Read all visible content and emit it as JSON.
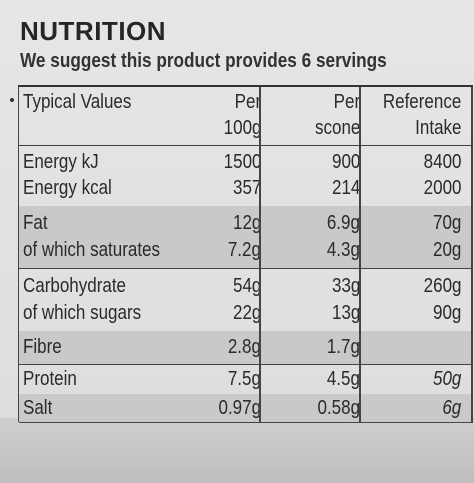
{
  "title": "NUTRITION",
  "subtitle": "We suggest this product provides 6 servings",
  "headers": {
    "nutrient": "Typical Values",
    "per100_line1": "Per",
    "per100_line2": "100g",
    "scone_line1": "Per",
    "scone_line2": "scone",
    "ri_line1": "Reference",
    "ri_line2": "Intake"
  },
  "rows": {
    "energy_kj": {
      "label": "Energy kJ",
      "per100": "1500",
      "scone": "900",
      "ri": "8400"
    },
    "energy_kcal": {
      "label": "Energy kcal",
      "per100": "357",
      "scone": "214",
      "ri": "2000"
    },
    "fat": {
      "label": "Fat",
      "per100": "12g",
      "scone": "6.9g",
      "ri": "70g"
    },
    "saturates": {
      "label": "of which saturates",
      "per100": "7.2g",
      "scone": "4.3g",
      "ri": "20g"
    },
    "carbohydrate": {
      "label": "Carbohydrate",
      "per100": "54g",
      "scone": "33g",
      "ri": "260g"
    },
    "sugars": {
      "label": "of which sugars",
      "per100": "22g",
      "scone": "13g",
      "ri": "90g"
    },
    "fibre": {
      "label": "Fibre",
      "per100": "2.8g",
      "scone": "1.7g",
      "ri": ""
    },
    "protein": {
      "label": "Protein",
      "per100": "7.5g",
      "scone": "4.5g",
      "ri": "50g"
    },
    "salt": {
      "label": "Salt",
      "per100": "0.97g",
      "scone": "0.58g",
      "ri": "6g"
    }
  }
}
